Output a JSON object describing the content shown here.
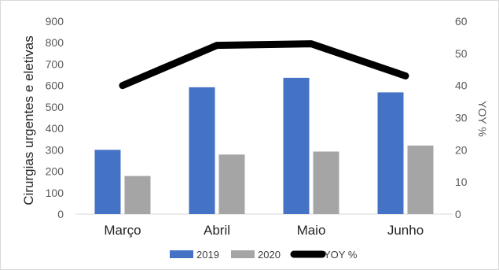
{
  "chart_data": {
    "type": "bar",
    "categories": [
      "Março",
      "Abril",
      "Maio",
      "Junho"
    ],
    "series": [
      {
        "name": "2019",
        "kind": "bar",
        "axis": "left",
        "color": "#4472c4",
        "values": [
          300,
          592,
          636,
          568
        ]
      },
      {
        "name": "2020",
        "kind": "bar",
        "axis": "left",
        "color": "#a5a5a5",
        "values": [
          178,
          278,
          292,
          320
        ]
      },
      {
        "name": "YOY %",
        "kind": "line",
        "axis": "right",
        "color": "#000000",
        "values": [
          40,
          52.5,
          53,
          43
        ]
      }
    ],
    "ylabel": "Cirurgias urgentes e eletivas",
    "y2label": "YOY %",
    "ylim": [
      0,
      900
    ],
    "y2lim": [
      0,
      60
    ],
    "yticks": [
      "0",
      "100",
      "200",
      "300",
      "400",
      "500",
      "600",
      "700",
      "800",
      "900"
    ],
    "y2ticks": [
      "0",
      "10",
      "20",
      "30",
      "40",
      "50",
      "60"
    ],
    "grid": false,
    "legend_position": "bottom"
  }
}
